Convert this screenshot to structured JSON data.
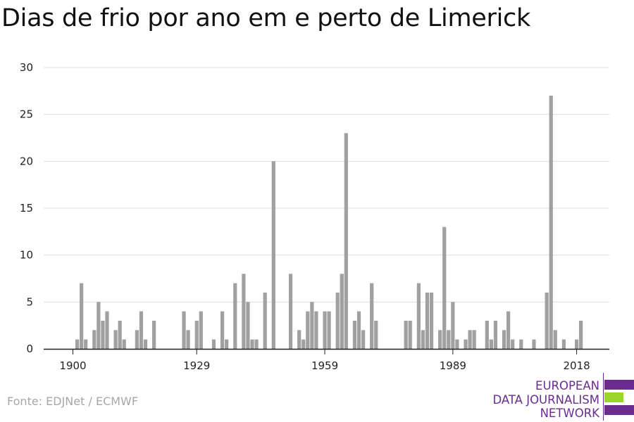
{
  "title": "Dias de frio por ano em e perto de Limerick",
  "source": "Fonte: EDJNet / ECMWF",
  "logo": {
    "line1": "EUROPEAN",
    "line2": "DATA JOURNALISM",
    "line3": "NETWORK",
    "colors": [
      "#6b2c91",
      "#9ad62a",
      "#6b2c91"
    ]
  },
  "chart_data": {
    "type": "bar",
    "title": "Dias de frio por ano em e perto de Limerick",
    "xlabel": "",
    "ylabel": "",
    "ylim": [
      0,
      30
    ],
    "yticks": [
      0,
      5,
      10,
      15,
      20,
      25,
      30
    ],
    "xticks": [
      1900,
      1929,
      1959,
      1989,
      2018
    ],
    "grid": true,
    "bar_color": "#a0a0a0",
    "x": [
      1900,
      1901,
      1902,
      1903,
      1904,
      1905,
      1906,
      1907,
      1908,
      1909,
      1910,
      1911,
      1912,
      1913,
      1914,
      1915,
      1916,
      1917,
      1918,
      1919,
      1920,
      1921,
      1922,
      1923,
      1924,
      1925,
      1926,
      1927,
      1928,
      1929,
      1930,
      1931,
      1932,
      1933,
      1934,
      1935,
      1936,
      1937,
      1938,
      1939,
      1940,
      1941,
      1942,
      1943,
      1944,
      1945,
      1946,
      1947,
      1948,
      1949,
      1950,
      1951,
      1952,
      1953,
      1954,
      1955,
      1956,
      1957,
      1958,
      1959,
      1960,
      1961,
      1962,
      1963,
      1964,
      1965,
      1966,
      1967,
      1968,
      1969,
      1970,
      1971,
      1972,
      1973,
      1974,
      1975,
      1976,
      1977,
      1978,
      1979,
      1980,
      1981,
      1982,
      1983,
      1984,
      1985,
      1986,
      1987,
      1988,
      1989,
      1990,
      1991,
      1992,
      1993,
      1994,
      1995,
      1996,
      1997,
      1998,
      1999,
      2000,
      2001,
      2002,
      2003,
      2004,
      2005,
      2006,
      2007,
      2008,
      2009,
      2010,
      2011,
      2012,
      2013,
      2014,
      2015,
      2016,
      2017,
      2018,
      2019
    ],
    "values": [
      0,
      1,
      7,
      1,
      0,
      2,
      5,
      3,
      4,
      0,
      2,
      3,
      1,
      0,
      0,
      2,
      4,
      1,
      0,
      3,
      0,
      0,
      0,
      0,
      0,
      0,
      4,
      2,
      0,
      3,
      4,
      0,
      0,
      1,
      0,
      4,
      1,
      0,
      7,
      0,
      8,
      5,
      1,
      1,
      0,
      6,
      0,
      20,
      0,
      0,
      0,
      8,
      0,
      2,
      1,
      4,
      5,
      4,
      0,
      4,
      4,
      0,
      6,
      8,
      23,
      0,
      3,
      4,
      2,
      0,
      7,
      3,
      0,
      0,
      0,
      0,
      0,
      0,
      3,
      3,
      0,
      7,
      2,
      6,
      6,
      0,
      2,
      13,
      2,
      5,
      1,
      0,
      1,
      2,
      2,
      0,
      0,
      3,
      1,
      3,
      0,
      2,
      4,
      1,
      0,
      1,
      0,
      0,
      1,
      0,
      0,
      6,
      27,
      2,
      0,
      1,
      0,
      0,
      1,
      3
    ]
  }
}
